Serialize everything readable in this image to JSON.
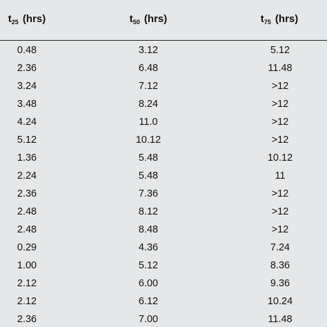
{
  "table": {
    "headers": [
      {
        "main": "t",
        "sub": "25",
        "unit": " (hrs)"
      },
      {
        "main": "t",
        "sub": "50",
        "unit": " (hrs)"
      },
      {
        "main": "t",
        "sub": "75",
        "unit": " (hrs)"
      }
    ],
    "rows": [
      [
        "0.48",
        "3.12",
        "5.12"
      ],
      [
        "2.36",
        "6.48",
        "11.48"
      ],
      [
        "3.24",
        "7.12",
        ">12"
      ],
      [
        "3.48",
        "8.24",
        ">12"
      ],
      [
        "4.24",
        "11.0",
        ">12"
      ],
      [
        "5.12",
        "10.12",
        ">12"
      ],
      [
        "1.36",
        "5.48",
        "10.12"
      ],
      [
        "2.24",
        "5.48",
        "11"
      ],
      [
        "2.36",
        "7.36",
        ">12"
      ],
      [
        "2.48",
        "8.12",
        ">12"
      ],
      [
        "2.48",
        "8.48",
        ">12"
      ],
      [
        "0.29",
        "4.36",
        "7.24"
      ],
      [
        "1.00",
        "5.12",
        "8.36"
      ],
      [
        "2.12",
        "6.00",
        "9.36"
      ],
      [
        "2.12",
        "6.12",
        "10.24"
      ],
      [
        "2.36",
        "7.00",
        "11.48"
      ]
    ]
  }
}
